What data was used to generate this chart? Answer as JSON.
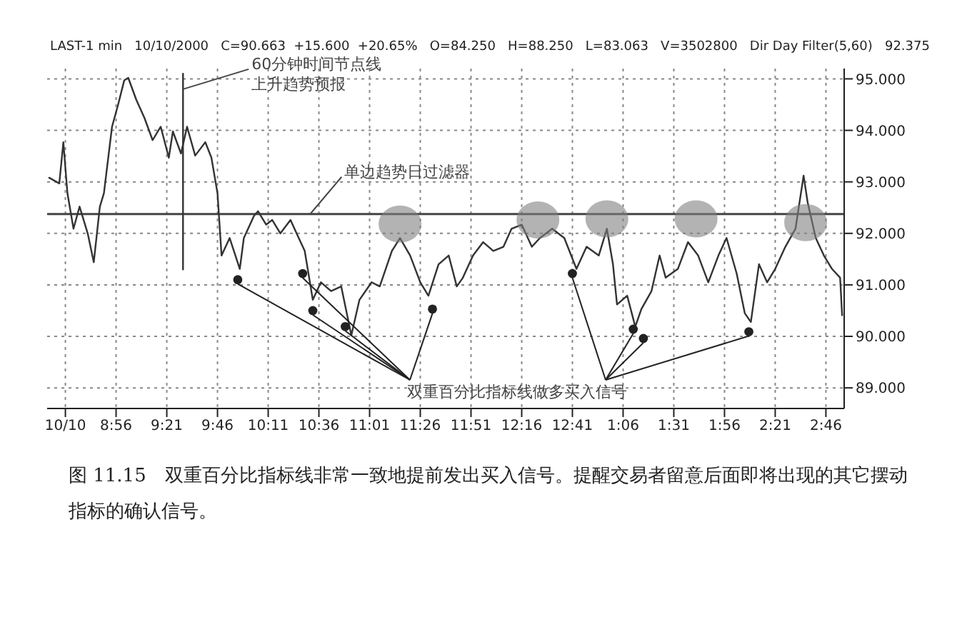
{
  "chart_data": {
    "type": "line",
    "subtitle": "LAST-1 min   10/10/2000   C=90.663  +15.600  +20.65%   O=84.250   H=88.250   L=83.063   V=3502800   Dir Day Filter(5,60)   92.375",
    "xlim": [
      "2000-10-10T08:22",
      "2000-10-10T14:55"
    ],
    "ylim": [
      88.6,
      95.2
    ],
    "xticks": [
      {
        "value": "2000-10-10T08:31",
        "label": "10/10"
      },
      {
        "value": "2000-10-10T08:56",
        "label": "8:56"
      },
      {
        "value": "2000-10-10T09:21",
        "label": "9:21"
      },
      {
        "value": "2000-10-10T09:46",
        "label": "9:46"
      },
      {
        "value": "2000-10-10T10:11",
        "label": "10:11"
      },
      {
        "value": "2000-10-10T10:36",
        "label": "10:36"
      },
      {
        "value": "2000-10-10T11:01",
        "label": "11:01"
      },
      {
        "value": "2000-10-10T11:26",
        "label": "11:26"
      },
      {
        "value": "2000-10-10T11:51",
        "label": "11:51"
      },
      {
        "value": "2000-10-10T12:16",
        "label": "12:16"
      },
      {
        "value": "2000-10-10T12:41",
        "label": "12:41"
      },
      {
        "value": "2000-10-10T13:06",
        "label": "1:06"
      },
      {
        "value": "2000-10-10T13:31",
        "label": "1:31"
      },
      {
        "value": "2000-10-10T13:56",
        "label": "1:56"
      },
      {
        "value": "2000-10-10T14:21",
        "label": "2:21"
      },
      {
        "value": "2000-10-10T14:46",
        "label": "2:46"
      }
    ],
    "yticks": [
      {
        "value": 89,
        "label": "89.000"
      },
      {
        "value": 90,
        "label": "90.000"
      },
      {
        "value": 91,
        "label": "91.000"
      },
      {
        "value": 92,
        "label": "92.000"
      },
      {
        "value": 93,
        "label": "93.000"
      },
      {
        "value": 94,
        "label": "94.000"
      },
      {
        "value": 95,
        "label": "95.000"
      }
    ],
    "grid": true,
    "series": [
      {
        "color": "#333333",
        "line_style": "solid",
        "x": [
          "2000-10-10T08:23",
          "2000-10-10T08:28",
          "2000-10-10T08:30",
          "2000-10-10T08:32",
          "2000-10-10T08:35",
          "2000-10-10T08:38",
          "2000-10-10T08:42",
          "2000-10-10T08:45",
          "2000-10-10T08:48",
          "2000-10-10T08:50",
          "2000-10-10T08:54",
          "2000-10-10T08:57",
          "2000-10-10T09:00",
          "2000-10-10T09:02",
          "2000-10-10T09:06",
          "2000-10-10T09:10",
          "2000-10-10T09:14",
          "2000-10-10T09:18",
          "2000-10-10T09:22",
          "2000-10-10T09:24",
          "2000-10-10T09:28",
          "2000-10-10T09:31",
          "2000-10-10T09:35",
          "2000-10-10T09:40",
          "2000-10-10T09:43",
          "2000-10-10T09:46",
          "2000-10-10T09:48",
          "2000-10-10T09:52",
          "2000-10-10T09:57",
          "2000-10-10T09:59",
          "2000-10-10T10:04",
          "2000-10-10T10:06",
          "2000-10-10T10:10",
          "2000-10-10T10:13",
          "2000-10-10T10:17",
          "2000-10-10T10:22",
          "2000-10-10T10:25",
          "2000-10-10T10:29",
          "2000-10-10T10:33",
          "2000-10-10T10:37",
          "2000-10-10T10:42",
          "2000-10-10T10:47",
          "2000-10-10T10:52",
          "2000-10-10T10:56",
          "2000-10-10T11:02",
          "2000-10-10T11:06",
          "2000-10-10T11:12",
          "2000-10-10T11:16",
          "2000-10-10T11:21",
          "2000-10-10T11:26",
          "2000-10-10T11:30",
          "2000-10-10T11:35",
          "2000-10-10T11:40",
          "2000-10-10T11:44",
          "2000-10-10T11:47",
          "2000-10-10T11:52",
          "2000-10-10T11:57",
          "2000-10-10T12:02",
          "2000-10-10T12:07",
          "2000-10-10T12:11",
          "2000-10-10T12:16",
          "2000-10-10T12:21",
          "2000-10-10T12:25",
          "2000-10-10T12:31",
          "2000-10-10T12:37",
          "2000-10-10T12:43",
          "2000-10-10T12:48",
          "2000-10-10T12:54",
          "2000-10-10T12:58",
          "2000-10-10T13:01",
          "2000-10-10T13:03",
          "2000-10-10T13:08",
          "2000-10-10T13:12",
          "2000-10-10T13:15",
          "2000-10-10T13:20",
          "2000-10-10T13:24",
          "2000-10-10T13:27",
          "2000-10-10T13:33",
          "2000-10-10T13:38",
          "2000-10-10T13:43",
          "2000-10-10T13:48",
          "2000-10-10T13:53",
          "2000-10-10T13:57",
          "2000-10-10T14:02",
          "2000-10-10T14:06",
          "2000-10-10T14:09",
          "2000-10-10T14:13",
          "2000-10-10T14:17",
          "2000-10-10T14:21",
          "2000-10-10T14:26",
          "2000-10-10T14:31",
          "2000-10-10T14:35",
          "2000-10-10T14:37",
          "2000-10-10T14:41",
          "2000-10-10T14:45",
          "2000-10-10T14:49",
          "2000-10-10T14:53",
          "2000-10-10T14:54"
        ],
        "values": [
          93.08,
          92.97,
          93.77,
          92.78,
          92.09,
          92.52,
          92.0,
          91.44,
          92.52,
          92.78,
          94.07,
          94.5,
          94.97,
          95.02,
          94.59,
          94.24,
          93.81,
          94.07,
          93.47,
          93.98,
          93.55,
          94.07,
          93.51,
          93.77,
          93.47,
          92.78,
          91.57,
          91.91,
          91.31,
          91.91,
          92.34,
          92.43,
          92.17,
          92.26,
          92.0,
          92.26,
          92.0,
          91.66,
          90.71,
          91.05,
          90.88,
          90.97,
          90.02,
          90.71,
          91.05,
          90.97,
          91.66,
          91.91,
          91.57,
          91.05,
          90.79,
          91.4,
          91.57,
          90.97,
          91.14,
          91.57,
          91.83,
          91.66,
          91.74,
          92.09,
          92.17,
          91.74,
          91.91,
          92.09,
          91.91,
          91.31,
          91.74,
          91.57,
          92.09,
          91.4,
          90.62,
          90.79,
          90.19,
          90.53,
          90.88,
          91.57,
          91.14,
          91.31,
          91.83,
          91.57,
          91.05,
          91.57,
          91.91,
          91.22,
          90.45,
          90.28,
          91.4,
          91.05,
          91.31,
          91.74,
          92.09,
          93.12,
          92.6,
          91.91,
          91.57,
          91.31,
          91.14,
          90.41
        ]
      },
      {
        "color": "#333333",
        "line_style": "solid",
        "x": [
          "2000-10-10T09:29",
          "2000-10-10T09:29"
        ],
        "values": [
          95.1,
          91.3
        ]
      },
      {
        "type": "scatter",
        "name": "双重百分比指标线做多买入信号",
        "color": "#222222",
        "marker": "circle",
        "x": [
          "2000-10-10T09:56",
          "2000-10-10T10:28",
          "2000-10-10T10:33",
          "2000-10-10T10:49",
          "2000-10-10T11:32",
          "2000-10-10T12:41",
          "2000-10-10T13:11",
          "2000-10-10T13:16",
          "2000-10-10T14:08"
        ],
        "values": [
          91.1,
          91.22,
          90.5,
          90.19,
          90.53,
          91.22,
          90.14,
          89.96,
          90.09
        ]
      },
      {
        "type": "bubble",
        "color": "#808080",
        "x": [
          "2000-10-10T11:16",
          "2000-10-10T12:24",
          "2000-10-10T12:58",
          "2000-10-10T13:42",
          "2000-10-10T14:36"
        ],
        "values": [
          92.18,
          92.26,
          92.28,
          92.28,
          92.21
        ],
        "sizes": [
          1,
          1,
          1,
          1,
          1
        ]
      }
    ],
    "ref_lines": [
      {
        "axis": "y",
        "value": 92.375,
        "label": "单边趋势日过滤器",
        "color": "#444444"
      }
    ],
    "annotations": [
      {
        "text": "60分钟时间节点线上升趋势预报",
        "x": "2000-10-10T09:29",
        "y": 94.8
      },
      "图 11.15　双重百分比指标线非常一致地提前发出买入信号。提醒交易者留意后面即将出现的其它摆动指标的确认信号。"
    ]
  }
}
